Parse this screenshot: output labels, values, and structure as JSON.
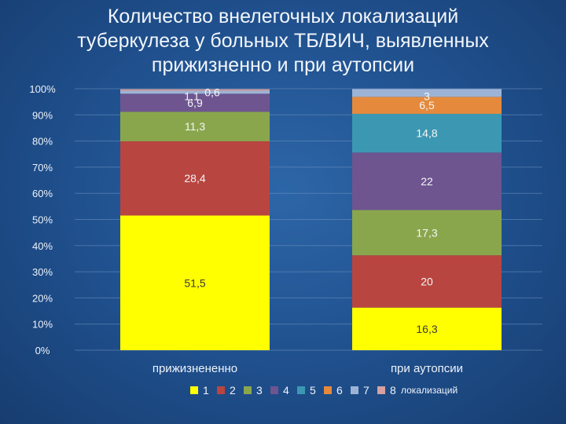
{
  "title_lines": [
    "Количество внелегочных локализаций",
    "туберкулеза у больных ТБ/ВИЧ, выявленных",
    "прижизненно и при аутопсии"
  ],
  "chart_data": {
    "type": "bar",
    "stacked": true,
    "percent_stacked": true,
    "categories": [
      "прижизнененно",
      "при аутопсии"
    ],
    "series": [
      {
        "name": "1",
        "color": "#ffff00",
        "values": [
          51.5,
          16.3
        ]
      },
      {
        "name": "2",
        "color": "#b94540",
        "values": [
          28.4,
          20
        ]
      },
      {
        "name": "3",
        "color": "#8aa64d",
        "values": [
          11.3,
          17.3
        ]
      },
      {
        "name": "4",
        "color": "#6e558f",
        "values": [
          6.9,
          22
        ]
      },
      {
        "name": "5",
        "color": "#3c98b2",
        "values": [
          0,
          14.8
        ]
      },
      {
        "name": "6",
        "color": "#e58a3c",
        "values": [
          0,
          6.5
        ]
      },
      {
        "name": "7",
        "color": "#9db3d6",
        "values": [
          1.1,
          3
        ]
      },
      {
        "name": "8",
        "color": "#d6a1a0",
        "values": [
          0.6,
          0
        ]
      }
    ],
    "data_labels": [
      [
        "51,5",
        "16,3"
      ],
      [
        "28,4",
        "20"
      ],
      [
        "11,3",
        "17,3"
      ],
      [
        "6,9",
        "22"
      ],
      [
        "",
        "14,8"
      ],
      [
        "",
        "6,5"
      ],
      [
        "1,1",
        "3"
      ],
      [
        "0,6",
        ""
      ]
    ],
    "y_ticks": [
      "0%",
      "10%",
      "20%",
      "30%",
      "40%",
      "50%",
      "60%",
      "70%",
      "80%",
      "90%",
      "100%"
    ],
    "ylim": [
      0,
      100
    ],
    "grid": true,
    "legend_position": "bottom",
    "legend_suffix": "локализаций"
  }
}
